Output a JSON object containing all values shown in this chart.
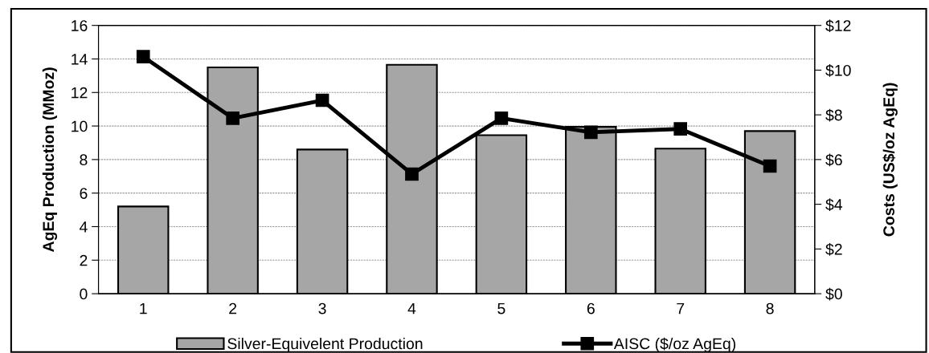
{
  "chart_data": {
    "type": "bar",
    "categories": [
      "1",
      "2",
      "3",
      "4",
      "5",
      "6",
      "7",
      "8"
    ],
    "ylabel": "AgEq Production (MMoz)",
    "y2label": "Costs (US$/oz AgEq)",
    "series": [
      {
        "name": "Silver-Equivelent Production",
        "color": "#a6a6a6",
        "values": [
          5.2,
          13.5,
          8.6,
          13.65,
          9.45,
          9.95,
          8.65,
          9.7
        ]
      },
      {
        "name": "AISC ($/oz AgEq)",
        "type": "line",
        "color": "#000000",
        "axis": "y2",
        "marker": "square",
        "values": [
          10.6,
          7.85,
          8.65,
          5.35,
          7.85,
          7.22,
          7.37,
          5.71
        ]
      }
    ],
    "ylim": [
      0,
      16
    ],
    "yticks": [
      0,
      2,
      4,
      6,
      8,
      10,
      12,
      14,
      16
    ],
    "y2lim": [
      0,
      12
    ],
    "y2ticks": [
      {
        "value": 0,
        "label": "$0"
      },
      {
        "value": 2,
        "label": "$2"
      },
      {
        "value": 4,
        "label": "$4"
      },
      {
        "value": 6,
        "label": "$6"
      },
      {
        "value": 8,
        "label": "$8"
      },
      {
        "value": 10,
        "label": "$10"
      },
      {
        "value": 12,
        "label": "$12"
      }
    ],
    "grid": "y",
    "legend": "bottom"
  }
}
